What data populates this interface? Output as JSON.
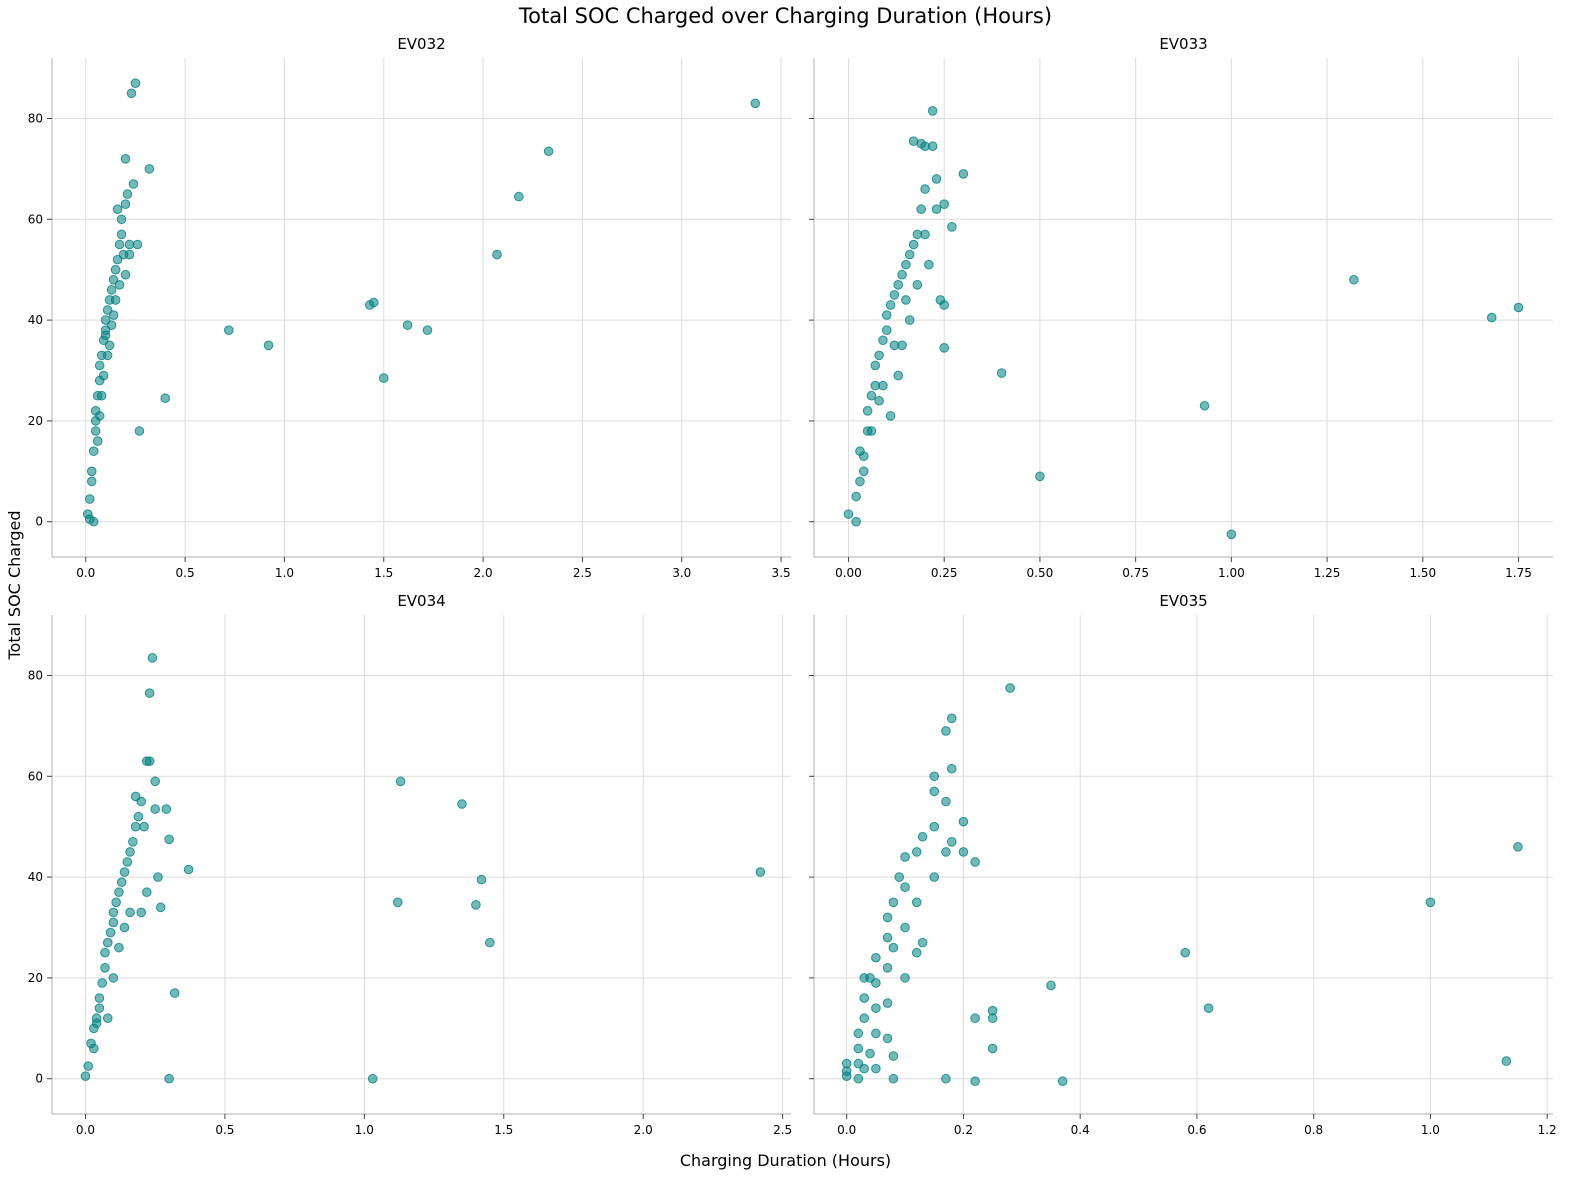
{
  "figure": {
    "title": "Total SOC Charged over Charging Duration (Hours)",
    "xlabel": "Charging Duration (Hours)",
    "ylabel": "Total SOC Charged"
  },
  "style": {
    "point_color": "#008080",
    "point_opacity": 0.55,
    "grid_color": "#dcdcdc",
    "spine_color": "#b0b0b0"
  },
  "chart_data": [
    {
      "type": "scatter",
      "title": "EV032",
      "xlim": [
        -0.17,
        3.55
      ],
      "ylim": [
        -7,
        92
      ],
      "xticks": [
        0.0,
        0.5,
        1.0,
        1.5,
        2.0,
        2.5,
        3.0,
        3.5
      ],
      "xtick_labels": [
        "0.0",
        "0.5",
        "1.0",
        "1.5",
        "2.0",
        "2.5",
        "3.0",
        "3.5"
      ],
      "yticks": [
        0,
        20,
        40,
        60,
        80
      ],
      "ytick_labels": [
        "0",
        "20",
        "40",
        "60",
        "80"
      ],
      "grid": true,
      "x": [
        0.01,
        0.02,
        0.03,
        0.04,
        0.05,
        0.05,
        0.06,
        0.07,
        0.07,
        0.08,
        0.09,
        0.1,
        0.1,
        0.11,
        0.12,
        0.13,
        0.14,
        0.15,
        0.16,
        0.17,
        0.18,
        0.18,
        0.2,
        0.21,
        0.22,
        0.24,
        0.26,
        0.27,
        0.32,
        0.4,
        0.09,
        0.12,
        0.14,
        0.17,
        0.19,
        0.06,
        0.08,
        0.11,
        0.13,
        0.15,
        0.07,
        0.1,
        0.2,
        0.22,
        0.05,
        0.03,
        0.02,
        0.04,
        0.16,
        0.2,
        0.23,
        0.25,
        0.72,
        0.92,
        1.43,
        1.45,
        1.5,
        1.62,
        1.72,
        2.07,
        2.18,
        2.33,
        3.37
      ],
      "y": [
        1.5,
        4.5,
        10,
        14,
        18,
        22,
        25,
        28,
        31,
        33,
        36,
        38,
        40,
        42,
        44,
        46,
        48,
        50,
        52,
        55,
        57,
        60,
        63,
        65,
        55,
        67,
        55,
        18,
        70,
        24.5,
        29,
        35,
        41,
        47,
        53,
        16,
        25,
        33,
        39,
        44,
        21,
        37,
        49,
        53,
        20,
        8,
        0.5,
        0,
        62,
        72,
        85,
        87,
        38,
        35,
        43,
        43.5,
        28.5,
        39,
        38,
        53,
        64.5,
        73.5,
        83
      ],
      "xlabel": "",
      "ylabel": ""
    },
    {
      "type": "scatter",
      "title": "EV033",
      "xlim": [
        -0.09,
        1.84
      ],
      "ylim": [
        -7,
        92
      ],
      "xticks": [
        0.0,
        0.25,
        0.5,
        0.75,
        1.0,
        1.25,
        1.5,
        1.75
      ],
      "xtick_labels": [
        "0.00",
        "0.25",
        "0.50",
        "0.75",
        "1.00",
        "1.25",
        "1.50",
        "1.75"
      ],
      "yticks": [
        0,
        20,
        40,
        60,
        80
      ],
      "ytick_labels": [],
      "grid": true,
      "x": [
        0.0,
        0.02,
        0.02,
        0.03,
        0.03,
        0.04,
        0.05,
        0.05,
        0.06,
        0.07,
        0.07,
        0.08,
        0.08,
        0.09,
        0.1,
        0.1,
        0.11,
        0.12,
        0.12,
        0.13,
        0.14,
        0.15,
        0.15,
        0.16,
        0.17,
        0.18,
        0.18,
        0.19,
        0.2,
        0.2,
        0.21,
        0.22,
        0.23,
        0.23,
        0.24,
        0.25,
        0.25,
        0.25,
        0.27,
        0.3,
        0.17,
        0.19,
        0.2,
        0.22,
        0.14,
        0.16,
        0.09,
        0.11,
        0.13,
        0.06,
        0.04,
        0.4,
        0.5,
        0.93,
        1.0,
        1.32,
        1.68,
        1.75
      ],
      "y": [
        1.5,
        0,
        5,
        8,
        14,
        10,
        18,
        22,
        25,
        27,
        31,
        24,
        33,
        36,
        38,
        41,
        43,
        45,
        35,
        47,
        49,
        51,
        44,
        53,
        55,
        57,
        47,
        62,
        66,
        57,
        51,
        81.5,
        68,
        62,
        44,
        63,
        43,
        34.5,
        58.5,
        69,
        75.5,
        75,
        74.5,
        74.5,
        35,
        40,
        27,
        21,
        29,
        18,
        13,
        29.5,
        9,
        23,
        -2.5,
        48,
        40.5,
        42.5
      ],
      "xlabel": "",
      "ylabel": ""
    },
    {
      "type": "scatter",
      "title": "EV034",
      "xlim": [
        -0.12,
        2.53
      ],
      "ylim": [
        -7,
        92
      ],
      "xticks": [
        0.0,
        0.5,
        1.0,
        1.5,
        2.0,
        2.5
      ],
      "xtick_labels": [
        "0.0",
        "0.5",
        "1.0",
        "1.5",
        "2.0",
        "2.5"
      ],
      "yticks": [
        0,
        20,
        40,
        60,
        80
      ],
      "ytick_labels": [
        "0",
        "20",
        "40",
        "60",
        "80"
      ],
      "grid": true,
      "x": [
        0.0,
        0.01,
        0.02,
        0.03,
        0.04,
        0.05,
        0.05,
        0.06,
        0.07,
        0.07,
        0.08,
        0.09,
        0.1,
        0.1,
        0.11,
        0.12,
        0.13,
        0.14,
        0.15,
        0.16,
        0.17,
        0.18,
        0.19,
        0.2,
        0.21,
        0.22,
        0.23,
        0.24,
        0.25,
        0.26,
        0.27,
        0.29,
        0.3,
        0.3,
        0.32,
        0.37,
        0.23,
        0.25,
        0.18,
        0.2,
        0.22,
        0.12,
        0.14,
        0.16,
        0.08,
        0.1,
        0.03,
        0.04,
        1.03,
        1.12,
        1.13,
        1.35,
        1.4,
        1.42,
        1.45,
        2.42
      ],
      "y": [
        0.5,
        2.5,
        7,
        10,
        12,
        14,
        16,
        19,
        22,
        25,
        27,
        29,
        31,
        33,
        35,
        37,
        39,
        41,
        43,
        45,
        47,
        50,
        52,
        55,
        50,
        63,
        76.5,
        83.5,
        53.5,
        40,
        34,
        53.5,
        47.5,
        0,
        17,
        41.5,
        63,
        59,
        56,
        33,
        37,
        26,
        30,
        33,
        12,
        20,
        6,
        11,
        0,
        35,
        59,
        54.5,
        34.5,
        39.5,
        27,
        41
      ],
      "xlabel": "",
      "ylabel": ""
    },
    {
      "type": "scatter",
      "title": "EV035",
      "xlim": [
        -0.056,
        1.21
      ],
      "ylim": [
        -7,
        92
      ],
      "xticks": [
        0.0,
        0.2,
        0.4,
        0.6,
        0.8,
        1.0,
        1.2
      ],
      "xtick_labels": [
        "0.0",
        "0.2",
        "0.4",
        "0.6",
        "0.8",
        "1.0",
        "1.2"
      ],
      "yticks": [
        0,
        20,
        40,
        60,
        80
      ],
      "ytick_labels": [],
      "grid": true,
      "x": [
        0.0,
        0.0,
        0.0,
        0.02,
        0.02,
        0.02,
        0.02,
        0.03,
        0.03,
        0.03,
        0.03,
        0.04,
        0.04,
        0.05,
        0.05,
        0.05,
        0.05,
        0.05,
        0.07,
        0.07,
        0.07,
        0.07,
        0.07,
        0.08,
        0.08,
        0.08,
        0.09,
        0.1,
        0.1,
        0.1,
        0.1,
        0.12,
        0.12,
        0.12,
        0.13,
        0.13,
        0.15,
        0.15,
        0.15,
        0.15,
        0.17,
        0.17,
        0.17,
        0.18,
        0.18,
        0.18,
        0.2,
        0.2,
        0.22,
        0.22,
        0.22,
        0.25,
        0.25,
        0.25,
        0.28,
        0.35,
        0.37,
        0.08,
        0.17,
        0.58,
        0.62,
        1.0,
        1.13,
        1.15
      ],
      "y": [
        0.5,
        1.5,
        3,
        0,
        3,
        6,
        9,
        2,
        12,
        16,
        20,
        5,
        20,
        2,
        9,
        14,
        19,
        24,
        8,
        15,
        22,
        28,
        32,
        4.5,
        26,
        35,
        40,
        20,
        30,
        38,
        44,
        25,
        35,
        45,
        27,
        48,
        40,
        50,
        57,
        60,
        45,
        55,
        69,
        47,
        61.5,
        71.5,
        45,
        51,
        12,
        -0.5,
        43,
        6,
        12,
        13.5,
        77.5,
        18.5,
        -0.5,
        0,
        0,
        25,
        14,
        35,
        3.5,
        46
      ],
      "xlabel": "",
      "ylabel": ""
    }
  ]
}
